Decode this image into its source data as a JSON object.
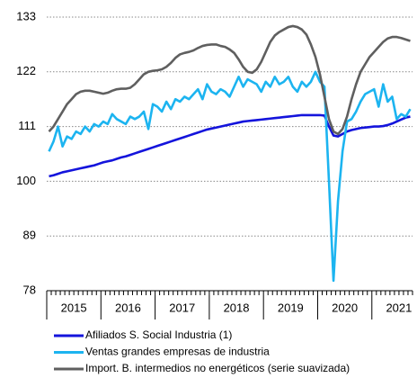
{
  "chart_data": {
    "type": "line",
    "categories": [
      null,
      null,
      null,
      null,
      null,
      null,
      "2015",
      null,
      null,
      null,
      null,
      null,
      null,
      null,
      null,
      null,
      null,
      null,
      "2016",
      null,
      null,
      null,
      null,
      null,
      null,
      null,
      null,
      null,
      null,
      null,
      "2017",
      null,
      null,
      null,
      null,
      null,
      null,
      null,
      null,
      null,
      null,
      null,
      "2018",
      null,
      null,
      null,
      null,
      null,
      null,
      null,
      null,
      null,
      null,
      null,
      "2019",
      null,
      null,
      null,
      null,
      null,
      null,
      null,
      null,
      null,
      null,
      null,
      "2020",
      null,
      null,
      null,
      null,
      null,
      null,
      null,
      null,
      null,
      null,
      null,
      "2021",
      null,
      null
    ],
    "ylim": [
      78,
      133
    ],
    "yticks": [
      78,
      89,
      100,
      111,
      122,
      133
    ],
    "grid": true,
    "legend": "bottom",
    "series": [
      {
        "name": "Afiliados S. Social Industria (1)",
        "color": "#1414dc",
        "values": [
          101,
          101.2,
          101.5,
          101.8,
          102,
          102.2,
          102.4,
          102.6,
          102.8,
          103,
          103.2,
          103.5,
          103.8,
          104,
          104.2,
          104.5,
          104.8,
          105,
          105.3,
          105.6,
          105.9,
          106.2,
          106.5,
          106.8,
          107.1,
          107.4,
          107.7,
          108,
          108.3,
          108.6,
          108.9,
          109.2,
          109.5,
          109.8,
          110.1,
          110.4,
          110.6,
          110.8,
          111,
          111.2,
          111.4,
          111.6,
          111.8,
          112,
          112.1,
          112.2,
          112.3,
          112.4,
          112.5,
          112.6,
          112.7,
          112.8,
          112.9,
          113,
          113.1,
          113.2,
          113.3,
          113.3,
          113.3,
          113.3,
          113.3,
          113.2,
          111,
          109.2,
          109,
          109.5,
          110,
          110.3,
          110.5,
          110.7,
          110.8,
          110.9,
          111,
          111,
          111.1,
          111.3,
          111.6,
          112,
          112.4,
          112.8,
          113
        ]
      },
      {
        "name": "Ventas grandes empresas de industria",
        "color": "#1cb4f0",
        "values": [
          106,
          108,
          111,
          107,
          109,
          108.5,
          110,
          109.5,
          111,
          110,
          111.5,
          111,
          112,
          111.5,
          113.5,
          112.5,
          112,
          111.5,
          113,
          112.5,
          113,
          114,
          110.5,
          115.5,
          115,
          114,
          116,
          114.5,
          116.5,
          116,
          117,
          116.5,
          117.5,
          118.5,
          116.5,
          119.5,
          118,
          117.5,
          118.5,
          118,
          117,
          119,
          121,
          119,
          120.5,
          120,
          119.5,
          118,
          120,
          119,
          121,
          119.5,
          120,
          121,
          119,
          118,
          120,
          119,
          120,
          122,
          120,
          119,
          100,
          80,
          96,
          106,
          112,
          112.5,
          114,
          116,
          117.5,
          118,
          118.5,
          115,
          119.5,
          116,
          117,
          112.5,
          113.5,
          113,
          114.5
        ]
      },
      {
        "name": "Import. B. intermedios no energéticos (serie suavizada)",
        "color": "#5f5f5f",
        "values": [
          110,
          111,
          112.5,
          114,
          115.5,
          116.5,
          117.5,
          118,
          118.2,
          118.2,
          118,
          117.8,
          117.6,
          117.8,
          118.2,
          118.5,
          118.6,
          118.6,
          118.8,
          119.5,
          120.5,
          121.5,
          122,
          122.2,
          122.3,
          122.5,
          123,
          123.8,
          124.8,
          125.5,
          125.8,
          126,
          126.3,
          126.8,
          127.2,
          127.4,
          127.5,
          127.5,
          127.2,
          127,
          126.5,
          125.8,
          124.5,
          123,
          122,
          121.8,
          122.5,
          124,
          126,
          128,
          129.3,
          130,
          130.5,
          131,
          131.2,
          131,
          130.5,
          129.5,
          127.5,
          125,
          121.5,
          117,
          112.5,
          110,
          109.5,
          110.5,
          113,
          116.5,
          119.5,
          122,
          123.5,
          125,
          126,
          127,
          128,
          128.7,
          129,
          129,
          128.8,
          128.5,
          128.2
        ]
      }
    ]
  }
}
